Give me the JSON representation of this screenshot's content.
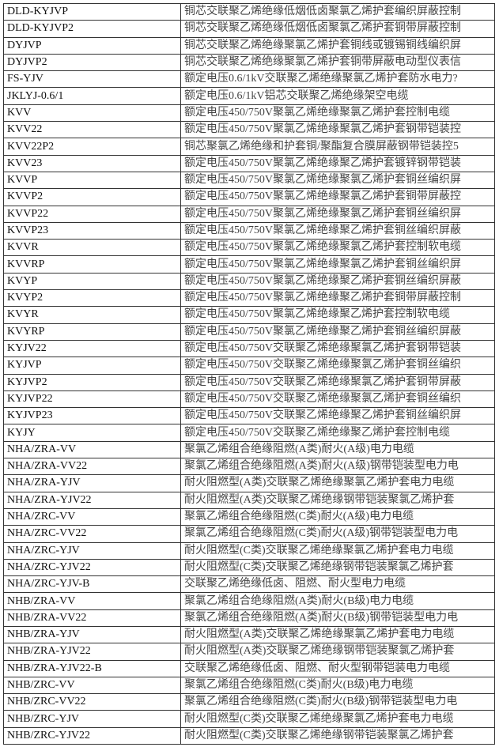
{
  "rows": [
    {
      "model": "DLD-KYJVP",
      "description": "铜芯交联聚乙烯绝缘低烟低卤聚氯乙烯护套编织屏蔽控制"
    },
    {
      "model": "DLD-KYJVP2",
      "description": "铜芯交联聚乙烯绝缘低烟低卤聚氯乙烯护套铜带屏蔽控制"
    },
    {
      "model": "DYJVP",
      "description": "铜芯交联聚乙烯绝缘聚氯乙烯护套铜线或镀锡铜线编织屏"
    },
    {
      "model": "DYJVP2",
      "description": "铜芯交联聚乙烯绝缘聚氯乙烯护套铜带屏蔽电动型仪表信"
    },
    {
      "model": "FS-YJV",
      "description": "额定电压0.6/1kV交联聚乙烯绝缘聚氯乙烯护套防水电力?"
    },
    {
      "model": "JKLYJ-0.6/1",
      "description": "额定电压0.6/1kV铝芯交联聚乙烯绝缘架空电缆"
    },
    {
      "model": "KVV",
      "description": "额定电压450/750V聚氯乙烯绝缘聚氯乙烯护套控制电缆"
    },
    {
      "model": "KVV22",
      "description": "额定电压450/750V聚氯乙烯绝缘聚氯乙烯护套钢带铠装控"
    },
    {
      "model": "KVV22P2",
      "description": "铜芯聚氯乙烯绝缘和护套铜/聚酯复合膜屏蔽钢带铠装控5"
    },
    {
      "model": "KVV23",
      "description": "额定电压450/750V聚氯乙烯绝缘聚乙烯护套镀锌钢带铠装"
    },
    {
      "model": "KVVP",
      "description": "额定电压450/750V聚氯乙烯绝缘聚氯乙烯护套铜丝编织屏"
    },
    {
      "model": "KVVP2",
      "description": "额定电压450/750V聚氯乙烯绝缘聚氯乙烯护套铜带屏蔽控"
    },
    {
      "model": "KVVP22",
      "description": "额定电压450/750V聚氯乙烯绝缘聚氯乙烯护套铜丝编织屏"
    },
    {
      "model": "KVVP23",
      "description": "额定电压450/750V聚氯乙烯绝缘聚乙烯护套铜丝编织屏蔽"
    },
    {
      "model": "KVVR",
      "description": "额定电压450/750V聚氯乙烯绝缘聚氯乙烯护套控制软电缆"
    },
    {
      "model": "KVVRP",
      "description": "额定电压450/750V聚氯乙烯绝缘聚氯乙烯护套铜丝编织屏"
    },
    {
      "model": "KVYP",
      "description": "额定电压450/750V聚氯乙烯绝缘聚乙烯护套铜丝编织屏蔽"
    },
    {
      "model": "KVYP2",
      "description": "额定电压450/750V聚氯乙烯绝缘聚乙烯护套铜带屏蔽控制"
    },
    {
      "model": "KVYR",
      "description": "额定电压450/750V聚氯乙烯绝缘聚乙烯护套控制软电缆"
    },
    {
      "model": "KVYRP",
      "description": "额定电压450/750V聚氯乙烯绝缘聚乙烯护套铜丝编织屏蔽"
    },
    {
      "model": "KYJV22",
      "description": "额定电压450/750V交联聚乙烯绝缘聚氯乙烯护套钢带铠装"
    },
    {
      "model": "KYJVP",
      "description": "额定电压450/750V交联聚乙烯绝缘聚氯乙烯护套铜丝编织"
    },
    {
      "model": "KYJVP2",
      "description": "额定电压450/750V交联聚乙烯绝缘聚氯乙烯护套铜带屏蔽"
    },
    {
      "model": "KYJVP22",
      "description": "额定电压450/750V交联聚乙烯绝缘聚氯乙烯护套铜丝编织"
    },
    {
      "model": "KYJVP23",
      "description": "额定电压450/750V交联聚乙烯绝缘聚乙烯护套铜丝编织屏"
    },
    {
      "model": "KYJY",
      "description": "额定电压450/750V交联聚乙烯绝缘聚乙烯护套控制电缆"
    },
    {
      "model": "NHA/ZRA-VV",
      "description": "聚氯乙烯组合绝缘阻燃(A类)耐火(A级)电力电缆"
    },
    {
      "model": "NHA/ZRA-VV22",
      "description": "聚氯乙烯组合绝缘阻燃(A类)耐火(A级)钢带铠装型电力电"
    },
    {
      "model": "NHA/ZRA-YJV",
      "description": "耐火阻燃型(A类)交联聚乙烯绝缘聚氯乙烯护套电力电缆"
    },
    {
      "model": "NHA/ZRA-YJV22",
      "description": "耐火阻燃型(A类)交联聚乙烯绝缘钢带铠装聚氯乙烯护套"
    },
    {
      "model": "NHA/ZRC-VV",
      "description": "聚氯乙烯组合绝缘阻燃(C类)耐火(A级)电力电缆"
    },
    {
      "model": "NHA/ZRC-VV22",
      "description": "聚氯乙烯组合绝缘阻燃(C类)耐火(A级)钢带铠装型电力电"
    },
    {
      "model": "NHA/ZRC-YJV",
      "description": "耐火阻燃型(C类)交联聚乙烯绝缘聚氯乙烯护套电力电缆"
    },
    {
      "model": "NHA/ZRC-YJV22",
      "description": "耐火阻燃型(C类)交联聚乙烯绝缘钢带铠装聚氯乙烯护套"
    },
    {
      "model": "NHA/ZRC-YJV-B",
      "description": "交联聚乙烯绝缘低卤、阻燃、耐火型电力电缆"
    },
    {
      "model": "NHB/ZRA-VV",
      "description": "聚氯乙烯组合绝缘阻燃(A类)耐火(B级)电力电缆"
    },
    {
      "model": "NHB/ZRA-VV22",
      "description": "聚氯乙烯组合绝缘阻燃(A类)耐火(B级)钢带铠装型电力电"
    },
    {
      "model": "NHB/ZRA-YJV",
      "description": "耐火阻燃型(A类)交联聚乙烯绝缘聚氯乙烯护套电力电缆"
    },
    {
      "model": "NHB/ZRA-YJV22",
      "description": "耐火阻燃型(A类)交联聚乙烯绝缘钢带铠装聚氯乙烯护套"
    },
    {
      "model": "NHB/ZRA-YJV22-B",
      "description": "交联聚乙烯绝缘低卤、阻燃、耐火型钢带铠装电力电缆"
    },
    {
      "model": "NHB/ZRC-VV",
      "description": "聚氯乙烯组合绝缘阻燃(C类)耐火(B级)电力电缆"
    },
    {
      "model": "NHB/ZRC-VV22",
      "description": "聚氯乙烯组合绝缘阻燃(C类)耐火(B级)钢带铠装型电力电"
    },
    {
      "model": "NHB/ZRC-YJV",
      "description": "耐火阻燃型(C类)交联聚乙烯绝缘聚氯乙烯护套电力电缆"
    },
    {
      "model": "NHB/ZRC-YJV22",
      "description": "耐火阻燃型(C类)交联聚乙烯绝缘钢带铠装聚氯乙烯护套"
    }
  ]
}
